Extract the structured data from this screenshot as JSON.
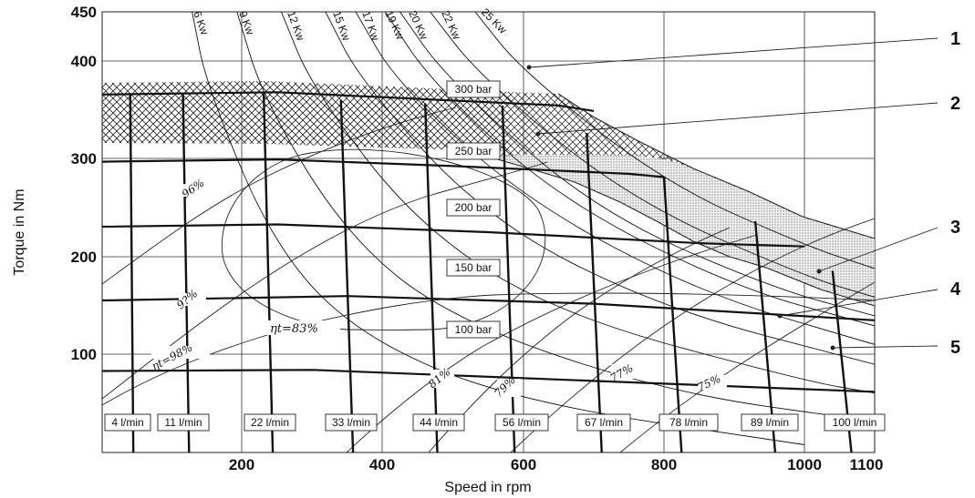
{
  "chart_data": {
    "type": "line",
    "xlabel": "Speed in rpm",
    "ylabel": "Torque in Nm",
    "xlim": [
      0,
      1100
    ],
    "ylim": [
      50,
      450
    ],
    "x_ticks": [
      200,
      400,
      600,
      800,
      1000,
      1100
    ],
    "y_ticks": [
      100,
      200,
      300,
      400,
      450
    ],
    "grid": true,
    "pressure_lines": [
      {
        "label": "300 bar",
        "points": [
          [
            0,
            375
          ],
          [
            250,
            377
          ],
          [
            650,
            365
          ],
          [
            700,
            360
          ]
        ]
      },
      {
        "label": "250 bar",
        "points": [
          [
            0,
            314
          ],
          [
            250,
            316
          ],
          [
            500,
            310
          ],
          [
            750,
            303
          ],
          [
            800,
            300
          ]
        ]
      },
      {
        "label": "200 bar",
        "points": [
          [
            0,
            255
          ],
          [
            250,
            257
          ],
          [
            550,
            250
          ],
          [
            850,
            240
          ],
          [
            1000,
            237
          ]
        ]
      },
      {
        "label": "150 bar",
        "points": [
          [
            0,
            188
          ],
          [
            350,
            192
          ],
          [
            700,
            185
          ],
          [
            1100,
            170
          ]
        ]
      },
      {
        "label": "100 bar",
        "points": [
          [
            0,
            124
          ],
          [
            300,
            125
          ],
          [
            700,
            115
          ],
          [
            1100,
            105
          ]
        ]
      }
    ],
    "flow_lines": [
      {
        "label": "4 l/min",
        "points": [
          [
            40,
            375
          ],
          [
            45,
            0
          ]
        ]
      },
      {
        "label": "11 l/min",
        "points": [
          [
            115,
            375
          ],
          [
            125,
            0
          ]
        ]
      },
      {
        "label": "22 l/min",
        "points": [
          [
            230,
            377
          ],
          [
            245,
            0
          ]
        ]
      },
      {
        "label": "33 l/min",
        "points": [
          [
            340,
            370
          ],
          [
            360,
            0
          ]
        ]
      },
      {
        "label": "44 l/min",
        "points": [
          [
            460,
            367
          ],
          [
            480,
            0
          ]
        ]
      },
      {
        "label": "56 l/min",
        "points": [
          [
            570,
            365
          ],
          [
            590,
            0
          ]
        ]
      },
      {
        "label": "67 l/min",
        "points": [
          [
            690,
            340
          ],
          [
            715,
            0
          ]
        ]
      },
      {
        "label": "78 l/min",
        "points": [
          [
            800,
            300
          ],
          [
            830,
            0
          ]
        ]
      },
      {
        "label": "89 l/min",
        "points": [
          [
            930,
            260
          ],
          [
            965,
            0
          ]
        ]
      },
      {
        "label": "100 l/min",
        "points": [
          [
            1040,
            215
          ],
          [
            1075,
            0
          ]
        ]
      }
    ],
    "power_lines": [
      {
        "label": "6 Kw",
        "points": [
          [
            128,
            450
          ],
          [
            150,
            380
          ],
          [
            250,
            230
          ],
          [
            380,
            150
          ],
          [
            600,
            95
          ],
          [
            1000,
            57
          ]
        ]
      },
      {
        "label": "9 Kw",
        "points": [
          [
            192,
            450
          ],
          [
            230,
            370
          ],
          [
            350,
            245
          ],
          [
            500,
            170
          ],
          [
            800,
            105
          ],
          [
            1100,
            78
          ]
        ]
      },
      {
        "label": "12 Kw",
        "points": [
          [
            255,
            450
          ],
          [
            300,
            380
          ],
          [
            450,
            255
          ],
          [
            650,
            175
          ],
          [
            1000,
            115
          ],
          [
            1100,
            104
          ]
        ]
      },
      {
        "label": "15 Kw",
        "points": [
          [
            318,
            450
          ],
          [
            370,
            385
          ],
          [
            550,
            260
          ],
          [
            800,
            180
          ],
          [
            1100,
            130
          ]
        ]
      },
      {
        "label": "17 Kw",
        "points": [
          [
            361,
            450
          ],
          [
            420,
            385
          ],
          [
            600,
            280
          ],
          [
            850,
            195
          ],
          [
            1100,
            148
          ]
        ]
      },
      {
        "label": "19 Kw",
        "points": [
          [
            403,
            450
          ],
          [
            470,
            385
          ],
          [
            650,
            280
          ],
          [
            900,
            200
          ],
          [
            1100,
            165
          ]
        ]
      },
      {
        "label": "20 Kw",
        "points": [
          [
            424,
            450
          ],
          [
            490,
            390
          ],
          [
            700,
            270
          ],
          [
            950,
            200
          ],
          [
            1100,
            174
          ]
        ]
      },
      {
        "label": "22 Kw",
        "points": [
          [
            467,
            450
          ],
          [
            540,
            390
          ],
          [
            750,
            280
          ],
          [
            1000,
            210
          ],
          [
            1100,
            191
          ]
        ]
      },
      {
        "label": "25 Kw",
        "points": [
          [
            531,
            450
          ],
          [
            600,
            395
          ],
          [
            800,
            295
          ],
          [
            1000,
            238
          ],
          [
            1100,
            217
          ]
        ]
      }
    ],
    "pressure_labels": [
      "300 bar",
      "250 bar",
      "200 bar",
      "150 bar",
      "100 bar"
    ],
    "flow_labels": [
      "4 l/min",
      "11 l/min",
      "22 l/min",
      "33 l/min",
      "44 l/min",
      "56 l/min",
      "67 l/min",
      "78 l/min",
      "89 l/min",
      "100 l/min"
    ],
    "power_labels": [
      "6 Kw",
      "9 Kw",
      "12 Kw",
      "15 Kw",
      "17 Kw",
      "19 Kw",
      "20 Kw",
      "22 Kw",
      "25 Kw"
    ],
    "efficiency_labels": [
      "96%",
      "9?%",
      "ηt=83%",
      "ηt=98%",
      "81%",
      "79%",
      "77%",
      "75%"
    ],
    "callouts": [
      "1",
      "2",
      "3",
      "4",
      "5"
    ]
  }
}
